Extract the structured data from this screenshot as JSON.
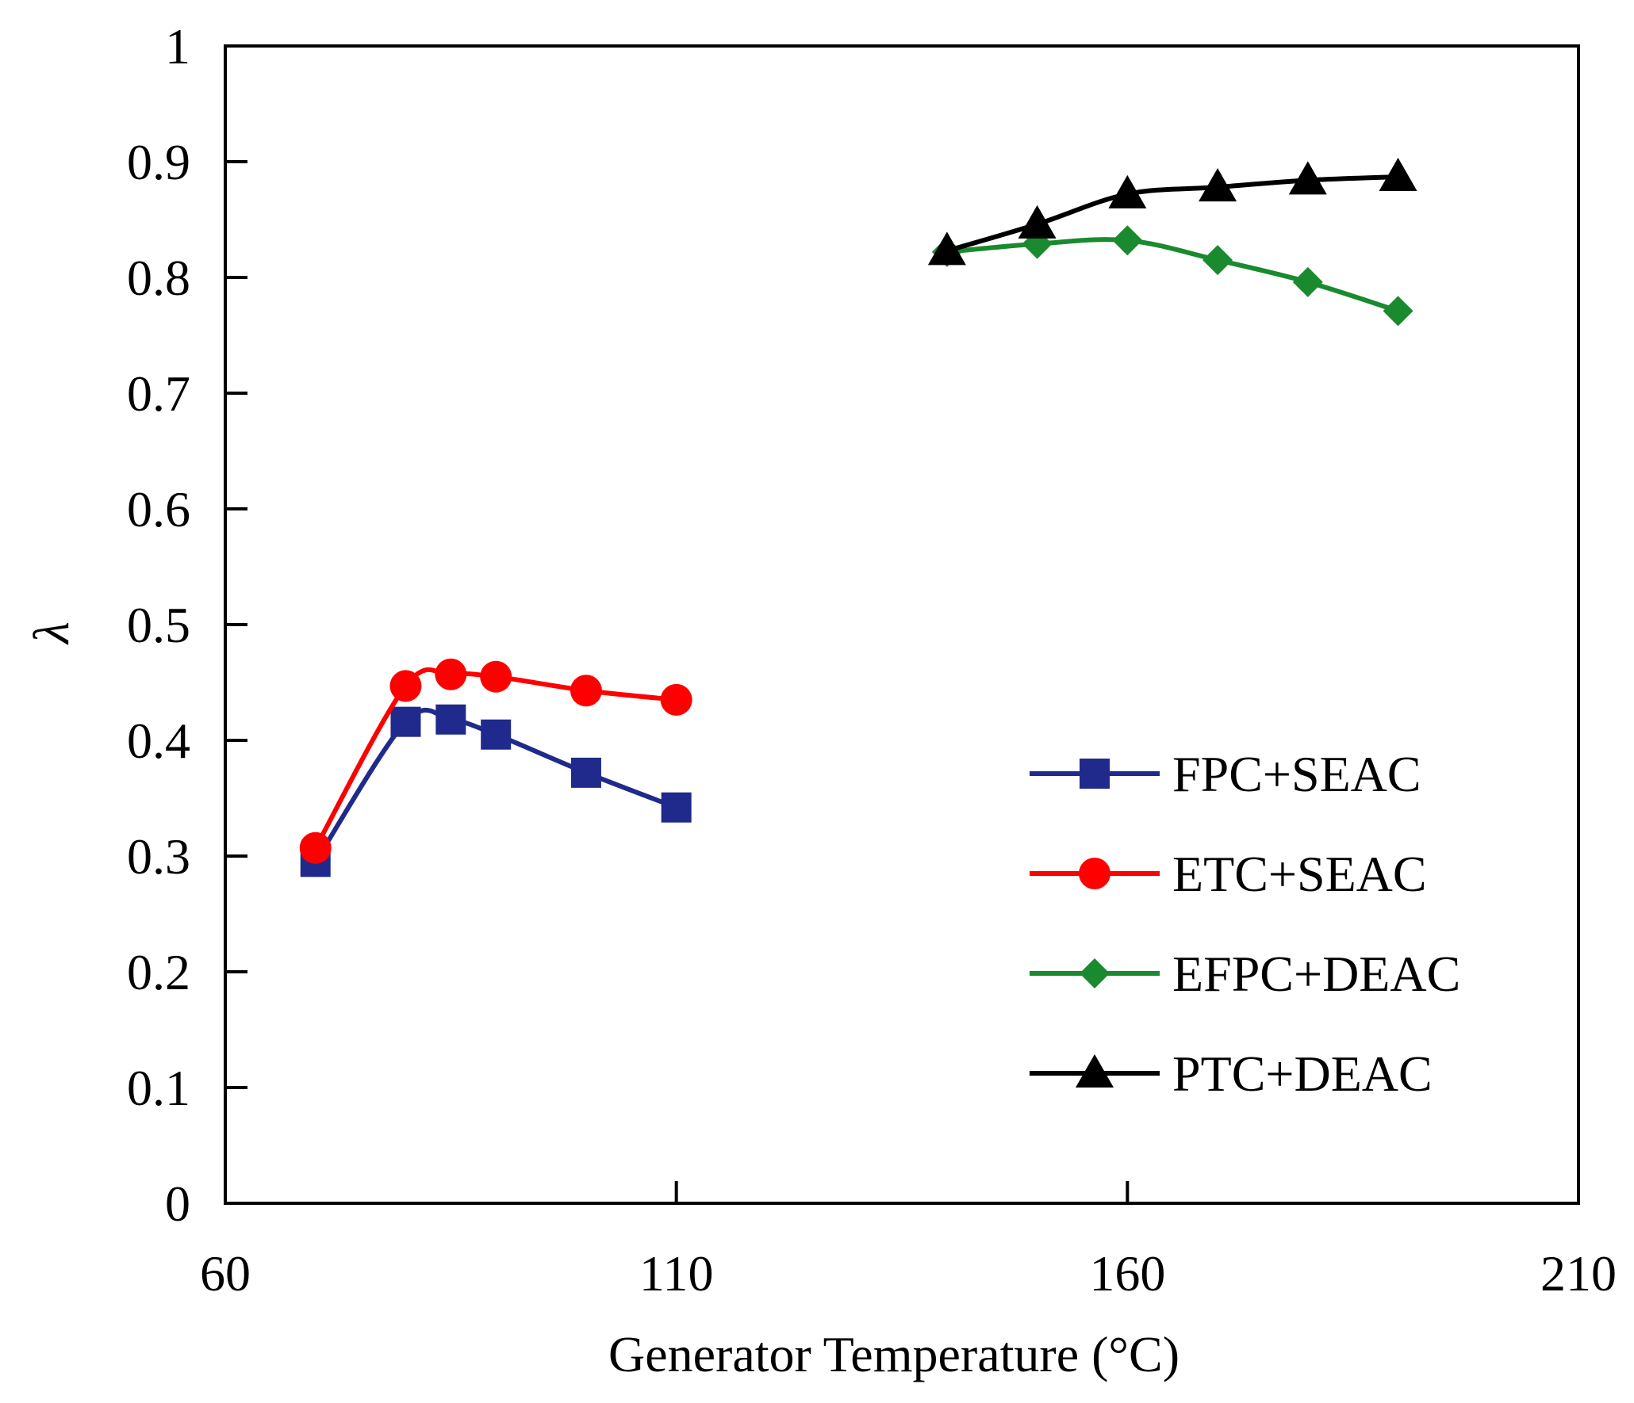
{
  "chart_data": {
    "type": "line",
    "title": "",
    "xlabel": "Generator Temperature (°C)",
    "ylabel": "λ",
    "xlim": [
      60,
      210
    ],
    "ylim": [
      0,
      1
    ],
    "xticks": [
      60,
      110,
      160,
      210
    ],
    "xtick_labels": [
      "60",
      "110",
      "160",
      "210"
    ],
    "yticks": [
      0,
      0.1,
      0.2,
      0.3,
      0.4,
      0.5,
      0.6,
      0.7,
      0.8,
      0.9,
      1
    ],
    "ytick_labels": [
      "0",
      "0.1",
      "0.2",
      "0.3",
      "0.4",
      "0.5",
      "0.6",
      "0.7",
      "0.8",
      "0.9",
      "1"
    ],
    "grid": false,
    "legend_position": "bottom-right",
    "series": [
      {
        "name": "FPC+SEAC",
        "color": "#1f2a8c",
        "marker": "square",
        "x": [
          70,
          80,
          85,
          90,
          100,
          110
        ],
        "y": [
          0.295,
          0.416,
          0.418,
          0.405,
          0.372,
          0.342
        ]
      },
      {
        "name": "ETC+SEAC",
        "color": "#ff0000",
        "marker": "circle",
        "x": [
          70,
          80,
          85,
          90,
          100,
          110
        ],
        "y": [
          0.307,
          0.447,
          0.457,
          0.455,
          0.443,
          0.435
        ]
      },
      {
        "name": "EFPC+DEAC",
        "color": "#1a8a2e",
        "marker": "diamond",
        "x": [
          140,
          150,
          160,
          170,
          180,
          190
        ],
        "y": [
          0.822,
          0.829,
          0.832,
          0.815,
          0.796,
          0.771
        ]
      },
      {
        "name": "PTC+DEAC",
        "color": "#000000",
        "marker": "triangle",
        "x": [
          140,
          150,
          160,
          170,
          180,
          190
        ],
        "y": [
          0.823,
          0.846,
          0.872,
          0.878,
          0.884,
          0.887
        ]
      }
    ]
  }
}
